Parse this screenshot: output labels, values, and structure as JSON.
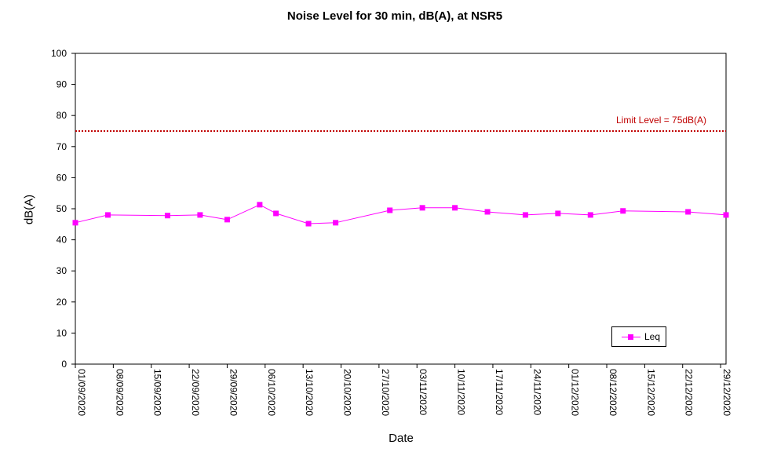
{
  "chart_data": {
    "type": "line",
    "title": "Noise Level for 30 min, dB(A), at NSR5",
    "xlabel": "Date",
    "ylabel": "dB(A)",
    "ylim": [
      0,
      100
    ],
    "yticks": [
      "0",
      "10",
      "20",
      "30",
      "40",
      "50",
      "60",
      "70",
      "80",
      "90",
      "100"
    ],
    "xlim": [
      "01/09/2020",
      "30/12/2020"
    ],
    "xticks": [
      "01/09/2020",
      "08/09/2020",
      "15/09/2020",
      "22/09/2020",
      "29/09/2020",
      "06/10/2020",
      "13/10/2020",
      "20/10/2020",
      "27/10/2020",
      "03/11/2020",
      "10/11/2020",
      "17/11/2020",
      "24/11/2020",
      "01/12/2020",
      "08/12/2020",
      "15/12/2020",
      "22/12/2020",
      "29/12/2020"
    ],
    "series": [
      {
        "name": "Leq",
        "color": "#ff00ff",
        "x": [
          "01/09/2020",
          "07/09/2020",
          "18/09/2020",
          "24/09/2020",
          "29/09/2020",
          "05/10/2020",
          "08/10/2020",
          "14/10/2020",
          "19/10/2020",
          "29/10/2020",
          "04/11/2020",
          "10/11/2020",
          "16/11/2020",
          "23/11/2020",
          "29/11/2020",
          "05/12/2020",
          "11/12/2020",
          "23/12/2020",
          "30/12/2020"
        ],
        "y": [
          45.5,
          48.0,
          47.8,
          48.0,
          46.5,
          51.3,
          48.5,
          45.2,
          45.5,
          49.5,
          50.3,
          50.3,
          49.0,
          48.0,
          48.5,
          48.0,
          49.3,
          49.0,
          48.0
        ]
      }
    ],
    "reference_line": {
      "value": 75,
      "label": "Limit Level  = 75dB(A)",
      "color": "#c00000",
      "style": "dotted"
    },
    "legend_position": "bottom-right",
    "grid": false
  }
}
